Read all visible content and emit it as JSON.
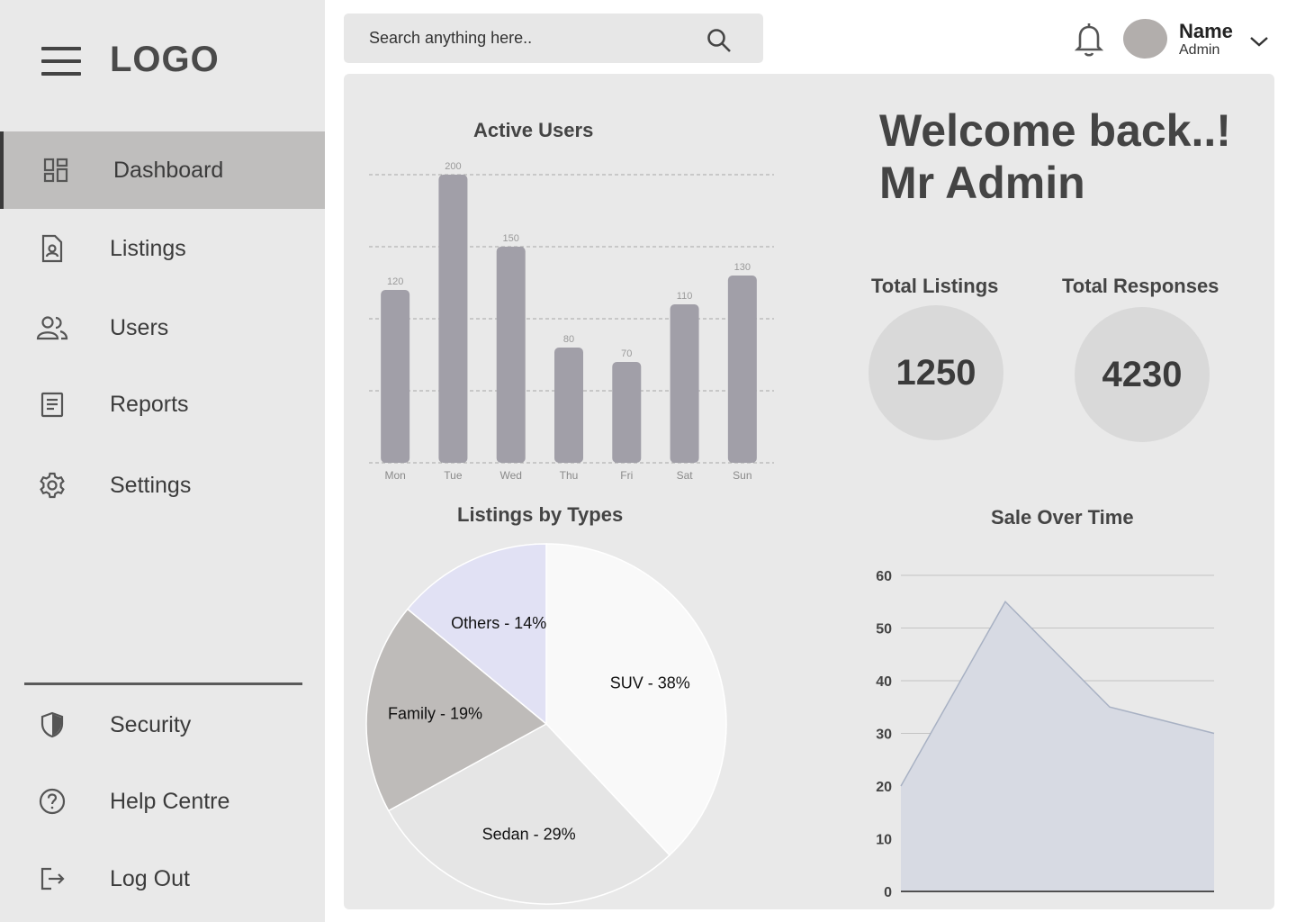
{
  "brand": {
    "logo": "LOGO"
  },
  "sidebar": {
    "items": [
      {
        "label": "Dashboard",
        "icon": "dashboard-icon",
        "active": true
      },
      {
        "label": "Listings",
        "icon": "listings-icon"
      },
      {
        "label": "Users",
        "icon": "users-icon"
      },
      {
        "label": "Reports",
        "icon": "reports-icon"
      },
      {
        "label": "Settings",
        "icon": "gear-icon"
      }
    ],
    "bottom_items": [
      {
        "label": "Security",
        "icon": "shield-icon"
      },
      {
        "label": "Help Centre",
        "icon": "help-icon"
      },
      {
        "label": "Log Out",
        "icon": "logout-icon"
      }
    ]
  },
  "header": {
    "search_placeholder": "Search anything here..",
    "user_name": "Name",
    "user_role": "Admin"
  },
  "welcome": {
    "line1": "Welcome back..!",
    "line2": "Mr Admin"
  },
  "stats": [
    {
      "label": "Total Listings",
      "value": "1250"
    },
    {
      "label": "Total Responses",
      "value": "4230"
    }
  ],
  "colors": {
    "bar": "#a19fa8",
    "pie_suv": "#f9f9f9",
    "pie_sedan": "#e5e5e5",
    "pie_family": "#bebbb9",
    "pie_others": "#e1e1f4",
    "area_fill": "#d7dae3",
    "area_line": "#a8b1c3"
  },
  "chart_data": [
    {
      "type": "bar",
      "title": "Active Users",
      "categories": [
        "Mon",
        "Tue",
        "Wed",
        "Thu",
        "Fri",
        "Sat",
        "Sun"
      ],
      "values": [
        120,
        200,
        150,
        80,
        70,
        110,
        130
      ],
      "ylim": [
        0,
        200
      ],
      "grid": true
    },
    {
      "type": "pie",
      "title": "Listings by Types",
      "labels": [
        "SUV - 38%",
        "Sedan - 29%",
        "Family - 19%",
        "Others - 14%"
      ],
      "values": [
        38,
        29,
        19,
        14
      ]
    },
    {
      "type": "area",
      "title": "Sale Over Time",
      "x": [
        0,
        1,
        2,
        3
      ],
      "values": [
        20,
        55,
        35,
        30
      ],
      "ylim": [
        0,
        60
      ],
      "yticks": [
        0,
        10,
        20,
        30,
        40,
        50,
        60
      ],
      "grid": true
    }
  ]
}
